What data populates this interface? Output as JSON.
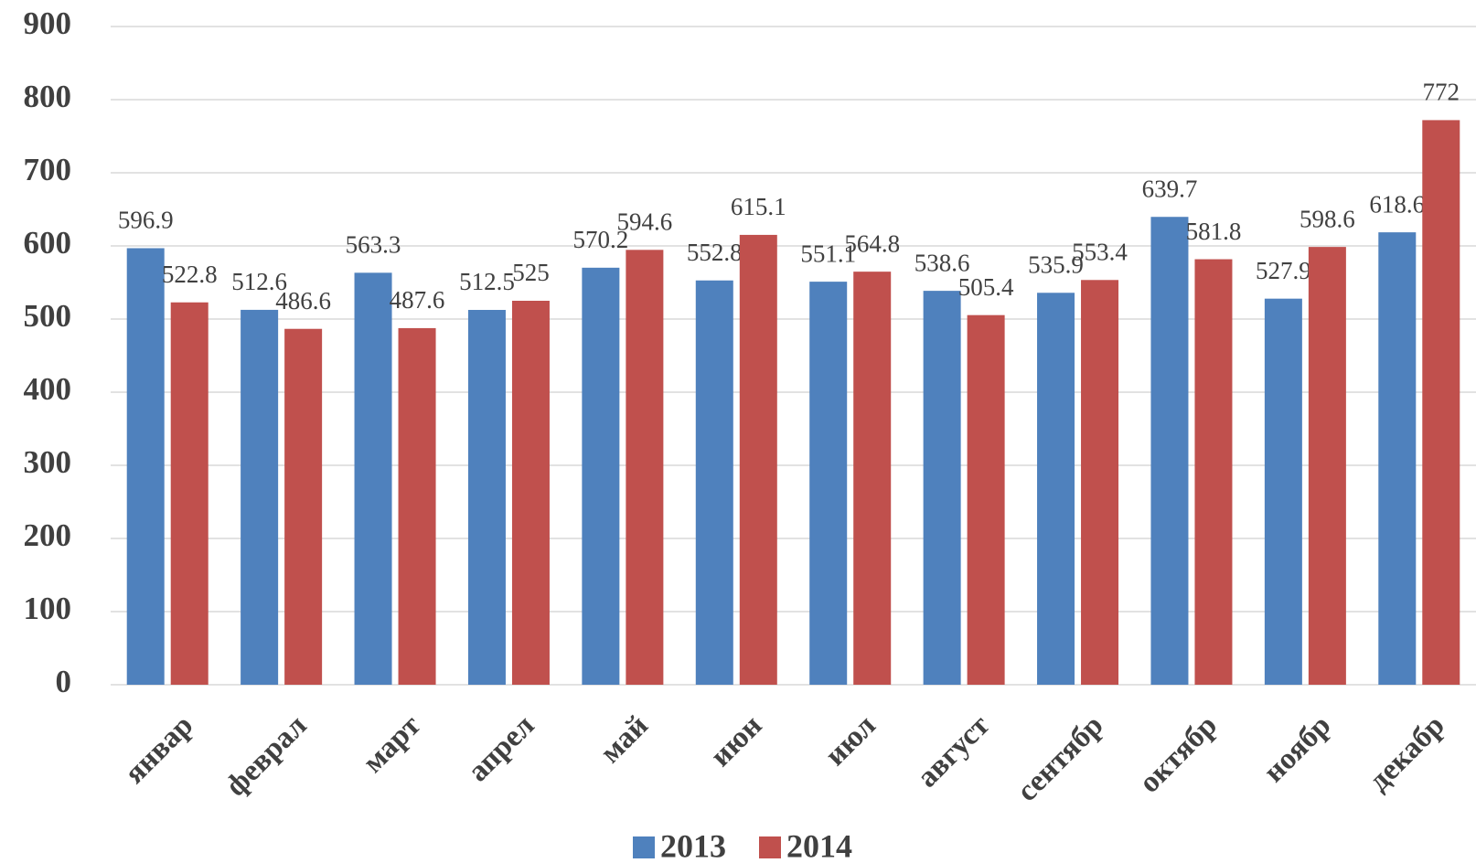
{
  "chart_data": {
    "type": "bar",
    "categories": [
      "январ",
      "феврал",
      "март",
      "апрел",
      "май",
      "июн",
      "июл",
      "август",
      "сентябр",
      "октябр",
      "ноябр",
      "декабр"
    ],
    "series": [
      {
        "name": "2013",
        "color": "#4f81bd",
        "values": [
          596.9,
          512.6,
          563.3,
          512.5,
          570.2,
          552.8,
          551.1,
          538.6,
          535.9,
          639.7,
          527.9,
          618.6
        ]
      },
      {
        "name": "2014",
        "color": "#c0504d",
        "values": [
          522.8,
          486.6,
          487.6,
          525,
          594.6,
          615.1,
          564.8,
          505.4,
          553.4,
          581.8,
          598.6,
          772
        ]
      }
    ],
    "ylim": [
      0,
      900
    ],
    "yticks": [
      0,
      100,
      200,
      300,
      400,
      500,
      600,
      700,
      800,
      900
    ],
    "grid": true
  }
}
